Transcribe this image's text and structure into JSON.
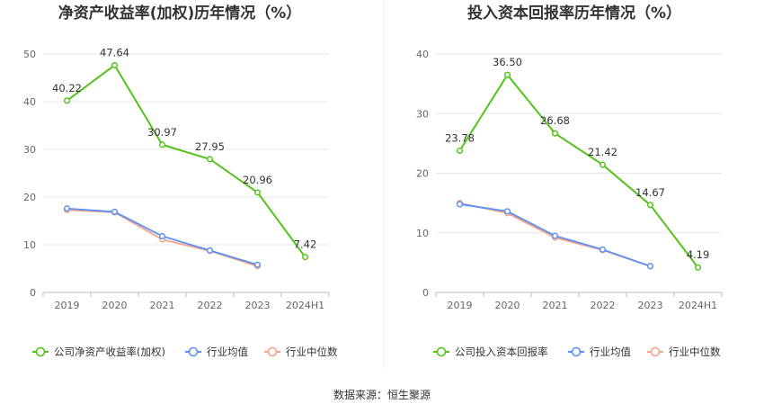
{
  "source": "数据来源：恒生聚源",
  "colors": {
    "company": "#52c41a",
    "avg": "#5b8ff9",
    "median": "#f4a484",
    "grid": "#e8e8e8",
    "axis": "#bbbbbb"
  },
  "chart_data": [
    {
      "type": "line",
      "title": "净资产收益率(加权)历年情况（%）",
      "categories": [
        "2019",
        "2020",
        "2021",
        "2022",
        "2023",
        "2024H1"
      ],
      "ylim": [
        0,
        50
      ],
      "yticks": [
        0,
        10,
        20,
        30,
        40,
        50
      ],
      "grid": true,
      "legend_position": "bottom",
      "series": [
        {
          "name": "公司净资产收益率(加权)",
          "values": [
            40.22,
            47.64,
            30.97,
            27.95,
            20.96,
            7.42
          ],
          "labels": [
            "40.22",
            "47.64",
            "30.97",
            "27.95",
            "20.96",
            "7.42"
          ]
        },
        {
          "name": "行业均值",
          "values": [
            17.6,
            16.9,
            11.8,
            8.8,
            5.8,
            null
          ]
        },
        {
          "name": "行业中位数",
          "values": [
            17.3,
            16.8,
            11.1,
            8.7,
            5.5,
            null
          ]
        }
      ]
    },
    {
      "type": "line",
      "title": "投入资本回报率历年情况（%）",
      "categories": [
        "2019",
        "2020",
        "2021",
        "2022",
        "2023",
        "2024H1"
      ],
      "ylim": [
        0,
        40
      ],
      "yticks": [
        0,
        10,
        20,
        30,
        40
      ],
      "grid": true,
      "legend_position": "bottom",
      "series": [
        {
          "name": "公司投入资本回报率",
          "values": [
            23.78,
            36.5,
            26.68,
            21.42,
            14.67,
            4.19
          ],
          "labels": [
            "23.78",
            "36.50",
            "26.68",
            "21.42",
            "14.67",
            "4.19"
          ]
        },
        {
          "name": "行业均值",
          "values": [
            14.8,
            13.6,
            9.5,
            7.2,
            4.4,
            null
          ]
        },
        {
          "name": "行业中位数",
          "values": [
            15.0,
            13.3,
            9.2,
            7.1,
            4.4,
            null
          ]
        }
      ]
    }
  ]
}
